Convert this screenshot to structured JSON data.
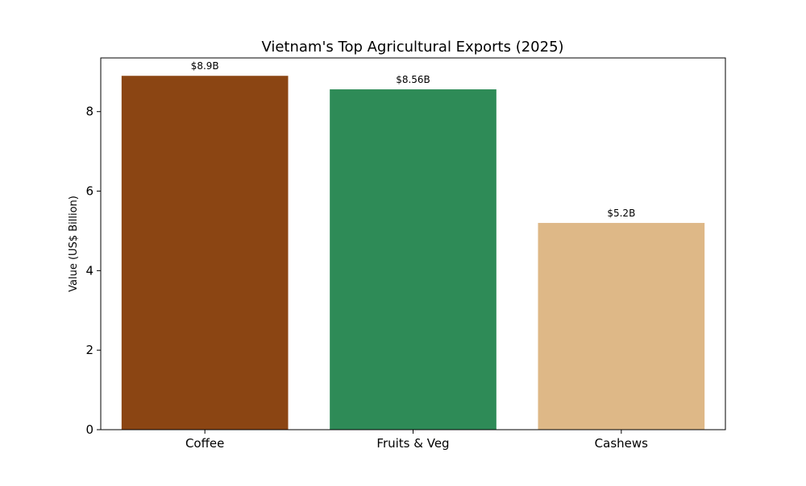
{
  "chart_data": {
    "type": "bar",
    "title": "Vietnam's Top Agricultural Exports (2025)",
    "xlabel": "",
    "ylabel": "Value (US$ Billion)",
    "categories": [
      "Coffee",
      "Fruits & Veg",
      "Cashews"
    ],
    "values": [
      8.9,
      8.56,
      5.2
    ],
    "data_labels": [
      "$8.9B",
      "$8.56B",
      "$5.2B"
    ],
    "colors": [
      "#8b4513",
      "#2e8b57",
      "#deb887"
    ],
    "ylim": [
      0,
      9.35
    ],
    "yticks": [
      0,
      2,
      4,
      6,
      8
    ],
    "grid": false,
    "legend": "none"
  }
}
